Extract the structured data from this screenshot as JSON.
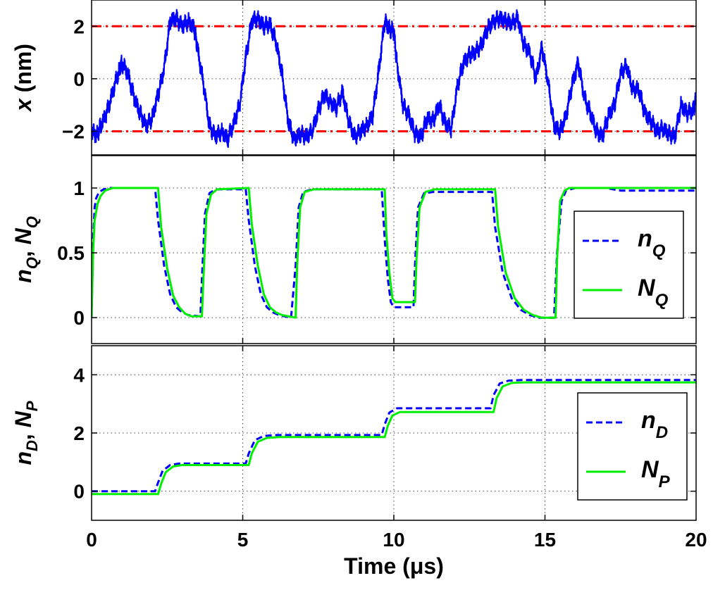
{
  "chart_data": [
    {
      "type": "line",
      "ylabel": {
        "main": "x",
        "rest": " (nm)"
      },
      "xlim": [
        0,
        20
      ],
      "ylim": [
        -2.9,
        3.0
      ],
      "yticks": [
        -2,
        0,
        2
      ],
      "ytick_labels": [
        "−2",
        "0",
        "2"
      ],
      "grid": true,
      "thresholds": [
        2,
        -2
      ],
      "threshold_color": "#ff0000",
      "series": [
        {
          "color": "#0000ff",
          "x": [
            0,
            0.15,
            0.3,
            0.5,
            0.7,
            0.9,
            1.0,
            1.2,
            1.4,
            1.6,
            1.8,
            2.0,
            2.2,
            2.4,
            2.6,
            2.8,
            3.0,
            3.2,
            3.4,
            3.5,
            3.7,
            3.9,
            4.1,
            4.3,
            4.5,
            4.7,
            4.9,
            5.1,
            5.3,
            5.5,
            5.7,
            5.9,
            6.1,
            6.3,
            6.5,
            6.7,
            6.9,
            7.1,
            7.3,
            7.5,
            7.7,
            7.9,
            8.1,
            8.3,
            8.5,
            8.7,
            8.9,
            9.1,
            9.3,
            9.5,
            9.7,
            9.85,
            10.0,
            10.1,
            10.3,
            10.5,
            10.7,
            10.9,
            11.1,
            11.3,
            11.5,
            11.7,
            11.9,
            12.1,
            12.3,
            12.5,
            12.7,
            12.9,
            13.1,
            13.3,
            13.5,
            13.7,
            13.9,
            14.1,
            14.3,
            14.5,
            14.7,
            14.9,
            15.1,
            15.3,
            15.5,
            15.7,
            15.9,
            16.1,
            16.3,
            16.5,
            16.7,
            16.9,
            17.1,
            17.3,
            17.5,
            17.7,
            17.9,
            18.1,
            18.3,
            18.5,
            18.7,
            18.9,
            19.1,
            19.3,
            19.5,
            19.7,
            19.9,
            20
          ],
          "values": [
            -1.9,
            -2.2,
            -1.8,
            -1.3,
            -0.5,
            0.3,
            0.6,
            0.2,
            -0.7,
            -1.3,
            -1.8,
            -1.5,
            -0.6,
            0.4,
            2.2,
            2.3,
            2.0,
            2.2,
            1.9,
            1.2,
            -0.2,
            -1.8,
            -2.2,
            -2.0,
            -2.3,
            -1.7,
            -1.0,
            0.8,
            2.2,
            2.3,
            2.0,
            2.1,
            1.4,
            0.2,
            -1.6,
            -2.3,
            -2.1,
            -2.2,
            -2.0,
            -1.2,
            -0.6,
            -0.9,
            -1.1,
            -0.5,
            -1.6,
            -2.2,
            -2.0,
            -1.8,
            -1.4,
            0.3,
            2.2,
            1.9,
            1.8,
            0.6,
            -1.0,
            -1.4,
            -2.1,
            -2.2,
            -1.5,
            -1.6,
            -1.0,
            -1.7,
            -1.9,
            -0.3,
            0.6,
            0.9,
            1.0,
            1.3,
            1.9,
            2.2,
            2.3,
            2.2,
            2.1,
            2.3,
            1.3,
            1.0,
            0.0,
            1.2,
            -0.1,
            -1.8,
            -2.0,
            -1.4,
            -0.2,
            0.6,
            -0.7,
            -1.3,
            -2.0,
            -2.2,
            -1.4,
            -1.0,
            0.2,
            0.5,
            -0.4,
            -0.4,
            -1.3,
            -1.6,
            -2.0,
            -1.9,
            -2.1,
            -2.2,
            -1.0,
            -1.3,
            -1.2,
            -0.8
          ]
        }
      ]
    },
    {
      "type": "line",
      "ylabel": {
        "a": "n",
        "a_sub": "Q",
        "b": "N",
        "b_sub": "Q"
      },
      "xlim": [
        0,
        20
      ],
      "ylim": [
        -0.2,
        1.25
      ],
      "yticks": [
        0,
        0.5,
        1
      ],
      "ytick_labels": [
        "0",
        "0.5",
        "1"
      ],
      "grid": true,
      "legend": {
        "position": "right",
        "entries": [
          {
            "label": "n",
            "sub": "Q",
            "style": "dashed",
            "color": "#0000ff"
          },
          {
            "label": "N",
            "sub": "Q",
            "style": "solid",
            "color": "#00ee00"
          }
        ]
      },
      "series": [
        {
          "color": "#0000ff",
          "style": "dashed",
          "x": [
            0,
            0.05,
            0.1,
            0.15,
            0.25,
            0.4,
            0.6,
            2.1,
            2.2,
            2.4,
            2.6,
            2.8,
            3.0,
            3.2,
            3.6,
            3.65,
            3.75,
            3.9,
            4.1,
            5.1,
            5.2,
            5.4,
            5.6,
            5.8,
            6.0,
            6.2,
            6.6,
            6.75,
            6.85,
            7.0,
            7.3,
            9.6,
            9.7,
            9.8,
            9.9,
            10.0,
            10.65,
            10.7,
            10.8,
            11.0,
            11.3,
            13.25,
            13.35,
            13.6,
            13.9,
            14.2,
            14.5,
            14.8,
            15.2,
            15.3,
            15.4,
            15.55,
            15.7,
            16.0,
            17.0,
            17.5,
            20
          ],
          "values": [
            0.0,
            0.6,
            0.85,
            0.92,
            0.97,
            0.99,
            1.0,
            1.0,
            0.75,
            0.4,
            0.18,
            0.08,
            0.04,
            0.02,
            0.01,
            0.3,
            0.8,
            0.96,
            0.99,
            0.99,
            0.75,
            0.4,
            0.18,
            0.08,
            0.04,
            0.02,
            0.0,
            0.4,
            0.85,
            0.97,
            0.99,
            0.99,
            0.6,
            0.3,
            0.12,
            0.08,
            0.08,
            0.4,
            0.85,
            0.96,
            0.97,
            0.97,
            0.7,
            0.35,
            0.15,
            0.06,
            0.02,
            0.0,
            0.0,
            0.0,
            0.5,
            0.9,
            0.98,
            1.0,
            1.0,
            0.98,
            0.98
          ]
        },
        {
          "color": "#00ee00",
          "style": "solid",
          "x": [
            0,
            0.05,
            0.1,
            0.2,
            0.3,
            0.45,
            0.7,
            2.2,
            2.3,
            2.5,
            2.7,
            2.9,
            3.1,
            3.3,
            3.65,
            3.7,
            3.8,
            3.95,
            4.15,
            5.2,
            5.3,
            5.5,
            5.7,
            5.9,
            6.1,
            6.3,
            6.75,
            6.8,
            6.9,
            7.05,
            7.35,
            9.7,
            9.75,
            9.85,
            9.95,
            10.05,
            10.7,
            10.75,
            10.85,
            11.05,
            11.35,
            13.35,
            13.45,
            13.7,
            14.0,
            14.3,
            14.6,
            14.9,
            15.35,
            15.4,
            15.5,
            15.65,
            15.8,
            16.1,
            20
          ],
          "values": [
            0.0,
            0.5,
            0.75,
            0.88,
            0.94,
            0.98,
            1.0,
            1.0,
            0.7,
            0.38,
            0.17,
            0.08,
            0.03,
            0.01,
            0.01,
            0.3,
            0.8,
            0.95,
            0.99,
            1.0,
            0.72,
            0.4,
            0.18,
            0.08,
            0.04,
            0.02,
            0.0,
            0.4,
            0.85,
            0.97,
            0.99,
            0.99,
            0.65,
            0.35,
            0.15,
            0.12,
            0.12,
            0.45,
            0.85,
            0.97,
            0.99,
            0.99,
            0.7,
            0.35,
            0.15,
            0.06,
            0.02,
            0.0,
            0.0,
            0.45,
            0.9,
            0.98,
            1.0,
            1.0,
            1.0
          ]
        }
      ]
    },
    {
      "type": "line",
      "ylabel": {
        "a": "n",
        "a_sub": "D",
        "b": "N",
        "b_sub": "P"
      },
      "xlabel": "Time (μs)",
      "xlim": [
        0,
        20
      ],
      "ylim": [
        -1,
        5
      ],
      "yticks": [
        0,
        2,
        4
      ],
      "ytick_labels": [
        "0",
        "2",
        "4"
      ],
      "xticks": [
        0,
        5,
        10,
        15,
        20
      ],
      "xtick_labels": [
        "0",
        "5",
        "10",
        "15",
        "20"
      ],
      "grid": true,
      "legend": {
        "position": "right",
        "entries": [
          {
            "label": "n",
            "sub": "D",
            "style": "dashed",
            "color": "#0000ff"
          },
          {
            "label": "N",
            "sub": "P",
            "style": "solid",
            "color": "#00ee00"
          }
        ]
      },
      "series": [
        {
          "color": "#0000ff",
          "style": "dashed",
          "x": [
            0,
            2.1,
            2.2,
            2.35,
            2.6,
            2.9,
            3.3,
            5.1,
            5.2,
            5.4,
            5.7,
            6.1,
            9.6,
            9.7,
            9.85,
            10.1,
            10.5,
            13.2,
            13.3,
            13.5,
            13.8,
            14.2,
            20
          ],
          "values": [
            0.0,
            0.0,
            0.3,
            0.7,
            0.9,
            0.95,
            0.95,
            0.95,
            1.3,
            1.75,
            1.9,
            1.93,
            1.93,
            2.3,
            2.7,
            2.85,
            2.85,
            2.85,
            3.3,
            3.7,
            3.8,
            3.82,
            3.82
          ]
        },
        {
          "color": "#00ee00",
          "style": "solid",
          "x": [
            0,
            2.2,
            2.3,
            2.45,
            2.7,
            3.0,
            3.4,
            5.2,
            5.3,
            5.5,
            5.8,
            6.2,
            9.7,
            9.8,
            9.95,
            10.2,
            10.6,
            13.3,
            13.4,
            13.6,
            13.9,
            14.3,
            20
          ],
          "values": [
            -0.1,
            -0.1,
            0.25,
            0.65,
            0.85,
            0.9,
            0.9,
            0.9,
            1.3,
            1.7,
            1.83,
            1.86,
            1.86,
            2.25,
            2.6,
            2.72,
            2.72,
            2.72,
            3.2,
            3.6,
            3.72,
            3.74,
            3.74
          ]
        }
      ]
    }
  ]
}
